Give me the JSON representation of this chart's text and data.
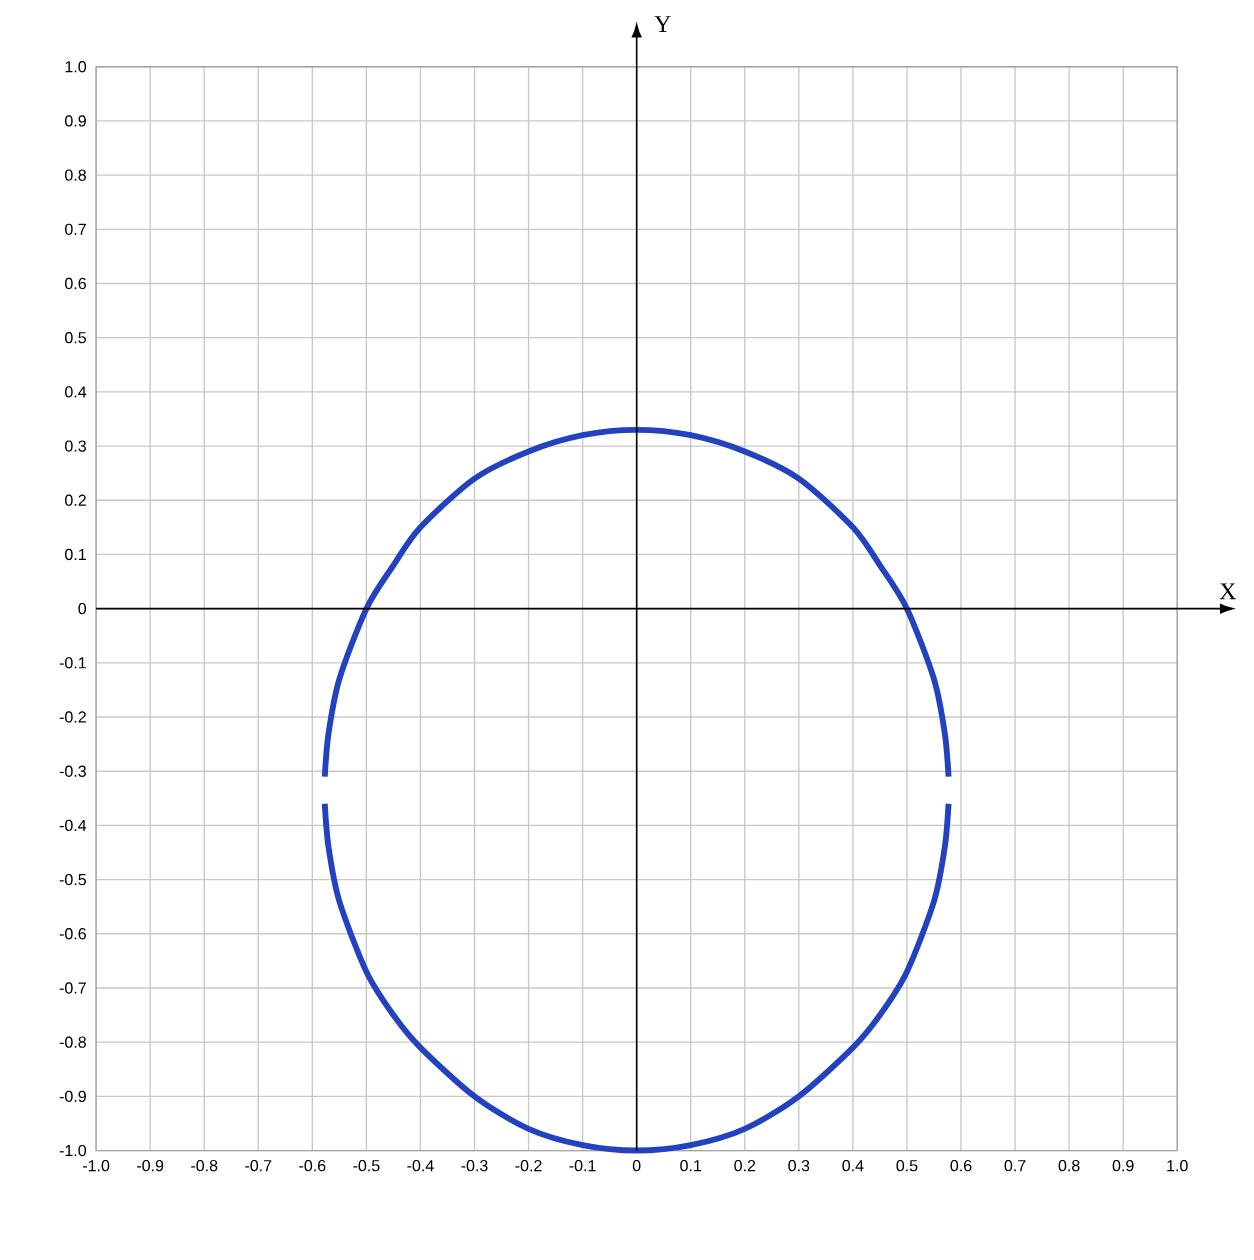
{
  "chart_data": {
    "type": "line",
    "xlabel": "X",
    "ylabel": "Y",
    "xlim": [
      -1.0,
      1.0
    ],
    "ylim": [
      -1.0,
      1.0
    ],
    "xticks": [
      {
        "value": -1.0,
        "label": "-1.0"
      },
      -0.9,
      -0.8,
      -0.7,
      -0.6,
      -0.5,
      -0.4,
      -0.3,
      -0.2,
      -0.1,
      0,
      0.1,
      0.2,
      0.3,
      0.4,
      0.5,
      0.6,
      0.7,
      0.8,
      0.9,
      {
        "value": 1.0,
        "label": "1.0"
      }
    ],
    "yticks": [
      {
        "value": -1.0,
        "label": "-1.0"
      },
      -0.9,
      -0.8,
      -0.7,
      -0.6,
      -0.5,
      -0.4,
      -0.3,
      -0.2,
      -0.1,
      0,
      0.1,
      0.2,
      0.3,
      0.4,
      0.5,
      0.6,
      0.7,
      0.8,
      0.9,
      {
        "value": 1.0,
        "label": "1.0"
      }
    ],
    "grid": true,
    "legend": false,
    "marker": "none",
    "line_style": "solid",
    "series": [
      {
        "color": "#2342c0",
        "x": [
          -0.577,
          -0.57,
          -0.55,
          -0.5,
          -0.45,
          -0.4,
          -0.3,
          -0.2,
          -0.1,
          0,
          0.1,
          0.2,
          0.3,
          0.4,
          0.45,
          0.5,
          0.55,
          0.57,
          0.577
        ],
        "values": [
          -0.31,
          -0.23,
          -0.13,
          0.0,
          0.08,
          0.15,
          0.24,
          0.29,
          0.32,
          0.33,
          0.32,
          0.29,
          0.24,
          0.15,
          0.08,
          0.0,
          -0.13,
          -0.23,
          -0.31
        ]
      },
      {
        "color": "#2342c0",
        "x": [
          -0.577,
          -0.57,
          -0.55,
          -0.5,
          -0.45,
          -0.4,
          -0.3,
          -0.2,
          -0.1,
          0,
          0.1,
          0.2,
          0.3,
          0.4,
          0.45,
          0.5,
          0.55,
          0.57,
          0.577
        ],
        "values": [
          -0.36,
          -0.44,
          -0.54,
          -0.67,
          -0.75,
          -0.81,
          -0.9,
          -0.96,
          -0.99,
          -1.0,
          -0.99,
          -0.96,
          -0.9,
          -0.81,
          -0.75,
          -0.67,
          -0.54,
          -0.44,
          -0.36
        ]
      }
    ]
  }
}
